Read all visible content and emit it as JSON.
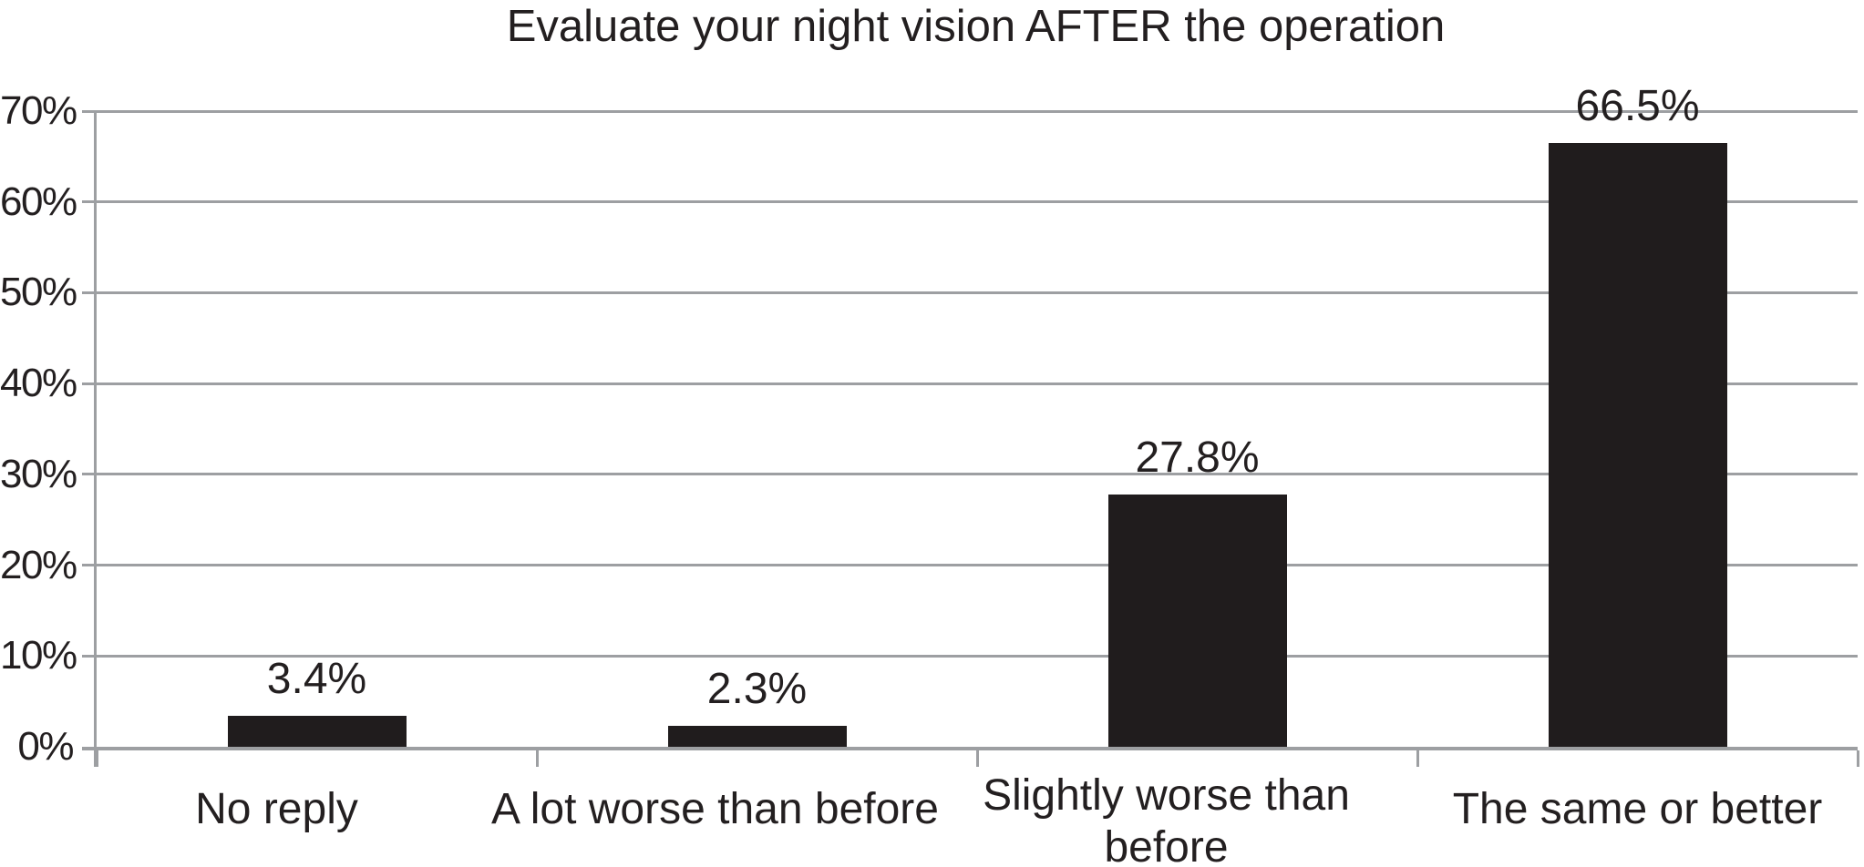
{
  "chart_data": {
    "type": "bar",
    "title": "Evaluate your night vision AFTER the operation",
    "categories": [
      "No reply",
      "A lot worse than before",
      "Slightly worse than before",
      "The same or better"
    ],
    "values": [
      3.4,
      2.3,
      27.8,
      66.5
    ],
    "data_labels": [
      "3.4%",
      "2.3%",
      "27.8%",
      "66.5%"
    ],
    "ytick_labels": [
      "0%",
      "10%",
      "20%",
      "30%",
      "40%",
      "50%",
      "60%",
      "70%"
    ],
    "ylim": [
      0,
      70
    ],
    "ytick_step": 10,
    "xlabel": "",
    "ylabel": "",
    "grid": "horizontal-major",
    "legend": "none",
    "bar_color": "#201c1d",
    "line_color": "#9d9fa2",
    "text_color": "#231f20",
    "background_color": "#ffffff"
  }
}
